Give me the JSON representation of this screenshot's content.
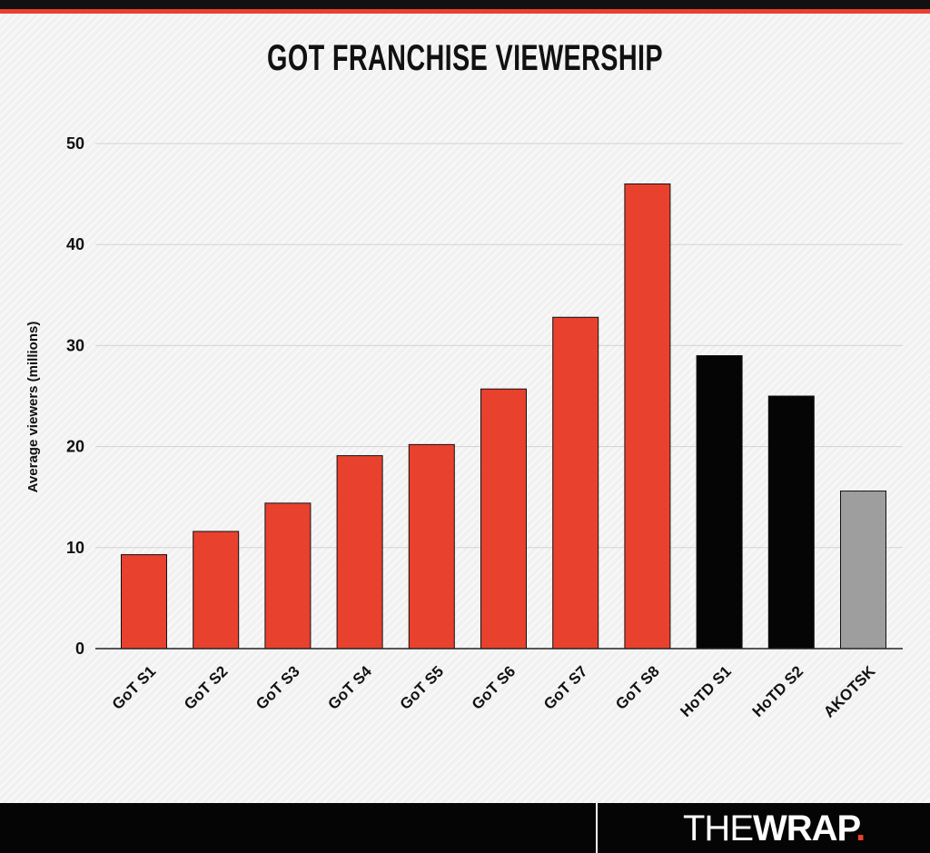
{
  "brand": {
    "logo_light": "THE",
    "logo_bold": "WRAP",
    "logo_dot": ".",
    "accent_color": "#e8412e"
  },
  "chart_data": {
    "type": "bar",
    "title": "GOT FRANCHISE VIEWERSHIP",
    "ylabel": "Average viewers (millions)",
    "xlabel": "",
    "ylim": [
      0,
      50
    ],
    "yticks": [
      0,
      10,
      20,
      30,
      40,
      50
    ],
    "grid": true,
    "categories": [
      "GoT S1",
      "GoT S2",
      "GoT S3",
      "GoT S4",
      "GoT S5",
      "GoT S6",
      "GoT S7",
      "GoT S8",
      "HoTD S1",
      "HoTD S2",
      "AKOTSK"
    ],
    "values": [
      9.3,
      11.6,
      14.4,
      19.1,
      20.2,
      25.7,
      32.8,
      46,
      29,
      25,
      15.6
    ],
    "colors": [
      "#e8412e",
      "#e8412e",
      "#e8412e",
      "#e8412e",
      "#e8412e",
      "#e8412e",
      "#e8412e",
      "#e8412e",
      "#050505",
      "#050505",
      "#9e9e9e"
    ]
  }
}
